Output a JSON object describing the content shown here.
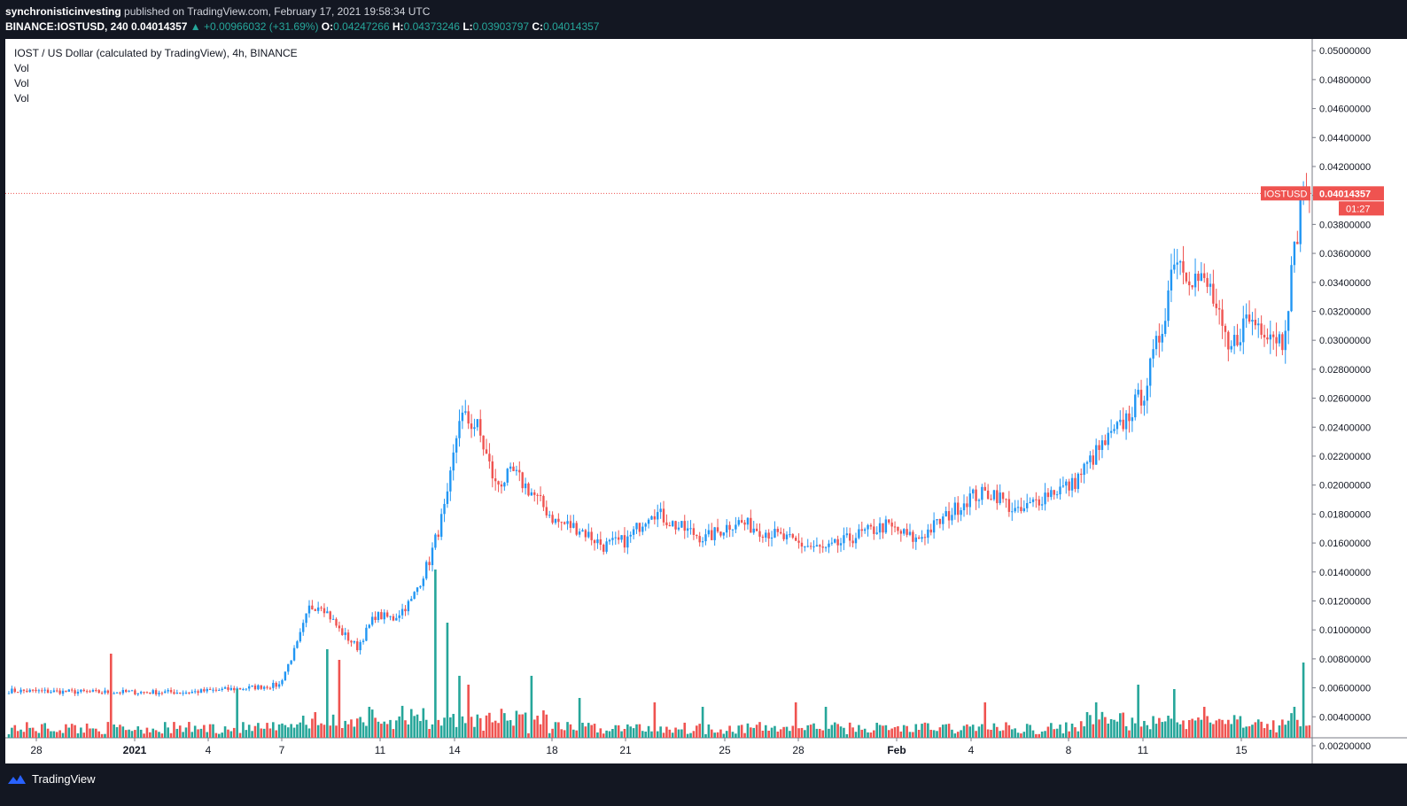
{
  "header": {
    "publisher": "synchronisticinvesting",
    "published_text": "published on TradingView.com, February 17, 2021 19:58:34 UTC",
    "symbol_line": "BINANCE:IOSTUSD, 240",
    "last": "0.04014357",
    "change": "▲ +0.00966032 (+31.69%)",
    "o_label": "O:",
    "o_value": "0.04247266",
    "h_label": "H:",
    "h_value": "0.04373246",
    "l_label": "L:",
    "l_value": "0.03903797",
    "c_label": "C:",
    "c_value": "0.04014357"
  },
  "legend": {
    "title": "IOST / US Dollar (calculated by TradingView), 4h, BINANCE",
    "vol1": "Vol",
    "vol2": "Vol",
    "vol3": "Vol"
  },
  "price_tag": {
    "symbol": "IOSTUSD",
    "price": "0.04014357",
    "countdown": "01:27"
  },
  "footer": {
    "brand": "TradingView"
  },
  "colors": {
    "up": "#26a69a",
    "up_candle": "#2196f3",
    "down": "#ef5350",
    "vol_up": "#26a69a",
    "vol_down": "#ef5350"
  },
  "chart_data": {
    "type": "candlestick",
    "title": "IOST / US Dollar (calculated by TradingView), 4h, BINANCE",
    "x_ticks": [
      "28",
      "2021",
      "4",
      "7",
      "11",
      "14",
      "18",
      "21",
      "25",
      "28",
      "Feb",
      "4",
      "8",
      "11",
      "15"
    ],
    "y_ticks": [
      "0.05000000",
      "0.04800000",
      "0.04600000",
      "0.04400000",
      "0.04200000",
      "0.04000000",
      "0.03800000",
      "0.03600000",
      "0.03400000",
      "0.03200000",
      "0.03000000",
      "0.02800000",
      "0.02600000",
      "0.02400000",
      "0.02200000",
      "0.02000000",
      "0.01800000",
      "0.01600000",
      "0.01400000",
      "0.01200000",
      "0.01000000",
      "0.00800000",
      "0.00600000",
      "0.00400000",
      "0.00200000"
    ],
    "ylim": [
      0.0,
      0.0505
    ],
    "last_price": 0.04014357,
    "anchors": [
      [
        0,
        0.0058
      ],
      [
        30,
        0.0057
      ],
      [
        60,
        0.0057
      ],
      [
        80,
        0.006
      ],
      [
        90,
        0.0062
      ],
      [
        96,
        0.009
      ],
      [
        100,
        0.0115
      ],
      [
        104,
        0.0118
      ],
      [
        110,
        0.01
      ],
      [
        116,
        0.0088
      ],
      [
        122,
        0.011
      ],
      [
        128,
        0.0108
      ],
      [
        134,
        0.012
      ],
      [
        140,
        0.0148
      ],
      [
        146,
        0.019
      ],
      [
        150,
        0.0248
      ],
      [
        156,
        0.024
      ],
      [
        162,
        0.02
      ],
      [
        168,
        0.0208
      ],
      [
        174,
        0.0195
      ],
      [
        182,
        0.0175
      ],
      [
        190,
        0.017
      ],
      [
        198,
        0.0158
      ],
      [
        206,
        0.0162
      ],
      [
        214,
        0.0183
      ],
      [
        222,
        0.0172
      ],
      [
        232,
        0.0163
      ],
      [
        242,
        0.0175
      ],
      [
        252,
        0.0168
      ],
      [
        262,
        0.016
      ],
      [
        272,
        0.0155
      ],
      [
        282,
        0.0165
      ],
      [
        292,
        0.0172
      ],
      [
        302,
        0.0162
      ],
      [
        312,
        0.0178
      ],
      [
        320,
        0.0192
      ],
      [
        328,
        0.0195
      ],
      [
        336,
        0.018
      ],
      [
        346,
        0.0195
      ],
      [
        354,
        0.02
      ],
      [
        362,
        0.0222
      ],
      [
        370,
        0.024
      ],
      [
        378,
        0.0265
      ],
      [
        384,
        0.031
      ],
      [
        388,
        0.036
      ],
      [
        394,
        0.0345
      ],
      [
        400,
        0.0335
      ],
      [
        406,
        0.029
      ],
      [
        412,
        0.0315
      ],
      [
        418,
        0.031
      ],
      [
        424,
        0.03
      ],
      [
        428,
        0.036
      ],
      [
        431,
        0.041
      ],
      [
        433,
        0.0401
      ]
    ],
    "volume_note": "volume histogram along the bottom, peaks near Jan 14-15 and the latest bar"
  }
}
